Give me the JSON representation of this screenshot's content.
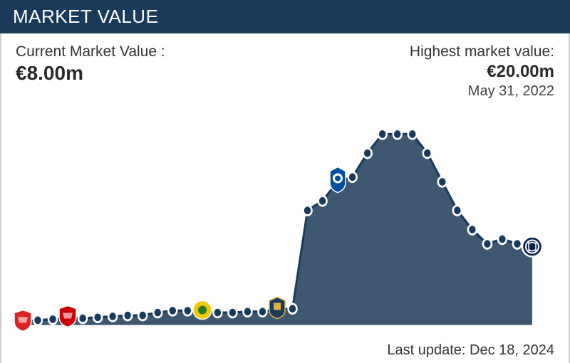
{
  "header": {
    "title": "MARKET VALUE"
  },
  "current": {
    "label": "Current Market Value :",
    "value": "€8.00m"
  },
  "highest": {
    "label": "Highest market value:",
    "value": "€20.00m",
    "date": "May 31, 2022"
  },
  "footer": {
    "last_update_label": "Last update:",
    "last_update_value": "Dec 18, 2024"
  },
  "chart": {
    "type": "area-line",
    "background_color": "#ffffff",
    "line_color": "#1a3a5c",
    "fill_color": "#2f4a66",
    "fill_opacity": 0.92,
    "point_fill": "#1a3a5c",
    "point_stroke": "#ffffff",
    "point_radius": 6,
    "point_stroke_width": 2.5,
    "line_width": 3,
    "xlim": [
      0,
      35
    ],
    "ylim": [
      0,
      22
    ],
    "values": [
      0.3,
      0.5,
      0.6,
      0.7,
      0.7,
      0.8,
      0.9,
      1.0,
      1.0,
      1.3,
      1.5,
      1.5,
      1.4,
      1.3,
      1.3,
      1.4,
      1.4,
      1.6,
      1.7,
      12.0,
      13.0,
      15.0,
      15.5,
      18.0,
      20.0,
      20.0,
      20.0,
      18.0,
      15.0,
      12.0,
      10.0,
      8.5,
      9.0,
      8.5,
      8.0
    ],
    "club_markers": [
      {
        "index": 0,
        "name": "club-a",
        "color": "#d22",
        "shape": "shield"
      },
      {
        "index": 3,
        "name": "club-b",
        "color": "#c00",
        "shape": "shield"
      },
      {
        "index": 12,
        "name": "club-c",
        "color": "#f0c800",
        "shape": "round"
      },
      {
        "index": 17,
        "name": "club-d",
        "color": "#1a3a5c",
        "shape": "crest"
      },
      {
        "index": 21,
        "name": "club-e",
        "color": "#0050a0",
        "shape": "crest-tall"
      },
      {
        "index": 34,
        "name": "club-f",
        "color": "#0b1f4d",
        "shape": "ring"
      }
    ]
  },
  "colors": {
    "header_bg": "#1a3a5c",
    "text": "#2a2a2a"
  }
}
